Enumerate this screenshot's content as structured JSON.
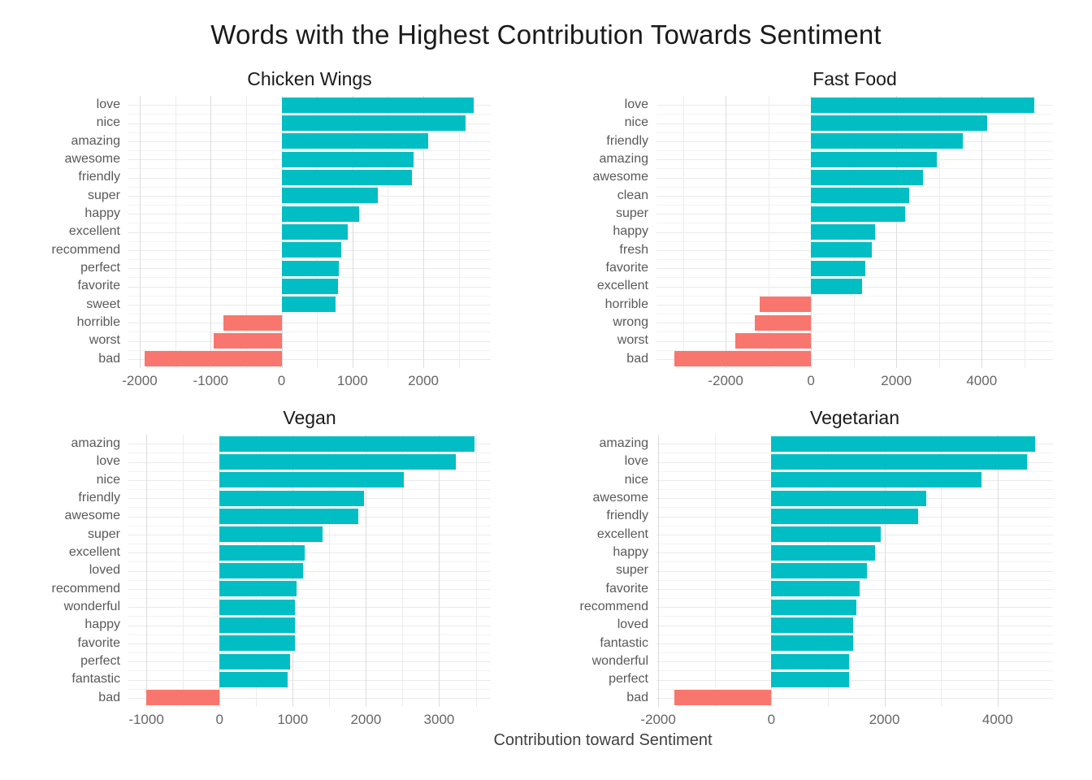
{
  "title": "Words with the Highest Contribution Towards Sentiment",
  "xlabel": "Contribution toward Sentiment",
  "colors": {
    "positive_bar": "#00BEC4",
    "negative_bar": "#F8766D",
    "grid_major": "#dcdcdc",
    "grid_minor": "#ececec",
    "axis_text": "#666666",
    "label_text": "#595959",
    "title_text": "#1a1a1a"
  },
  "chart_data": [
    {
      "type": "bar",
      "orientation": "horizontal",
      "title": "Chicken Wings",
      "categories": [
        "love",
        "nice",
        "amazing",
        "awesome",
        "friendly",
        "super",
        "happy",
        "excellent",
        "recommend",
        "perfect",
        "favorite",
        "sweet",
        "horrible",
        "worst",
        "bad"
      ],
      "values": [
        2710,
        2590,
        2070,
        1860,
        1840,
        1360,
        1090,
        930,
        840,
        810,
        800,
        760,
        -820,
        -960,
        -1930
      ],
      "xticks": [
        -2000,
        -1000,
        0,
        1000,
        2000
      ],
      "xticks_minor": [
        -1500,
        -500,
        500,
        1500,
        2500
      ],
      "xlim": [
        -2160,
        2950
      ],
      "grid": true,
      "legend": "none"
    },
    {
      "type": "bar",
      "orientation": "horizontal",
      "title": "Fast Food",
      "categories": [
        "love",
        "nice",
        "friendly",
        "amazing",
        "awesome",
        "clean",
        "super",
        "happy",
        "fresh",
        "favorite",
        "excellent",
        "horrible",
        "wrong",
        "worst",
        "bad"
      ],
      "values": [
        5240,
        4120,
        3560,
        2940,
        2620,
        2300,
        2210,
        1500,
        1420,
        1270,
        1200,
        -1200,
        -1320,
        -1780,
        -3200
      ],
      "xticks": [
        -2000,
        0,
        2000,
        4000
      ],
      "xticks_minor": [
        -3000,
        -1000,
        1000,
        3000,
        5000
      ],
      "xlim": [
        -3620,
        5670
      ],
      "grid": true,
      "legend": "none"
    },
    {
      "type": "bar",
      "orientation": "horizontal",
      "title": "Vegan",
      "categories": [
        "amazing",
        "love",
        "nice",
        "friendly",
        "awesome",
        "super",
        "excellent",
        "loved",
        "recommend",
        "wonderful",
        "happy",
        "favorite",
        "perfect",
        "fantastic",
        "bad"
      ],
      "values": [
        3480,
        3230,
        2520,
        1970,
        1900,
        1410,
        1160,
        1140,
        1050,
        1035,
        1030,
        1025,
        960,
        930,
        -1000
      ],
      "xticks": [
        -1000,
        0,
        1000,
        2000,
        3000
      ],
      "xticks_minor": [
        -500,
        500,
        1500,
        2500,
        3500
      ],
      "xlim": [
        -1245,
        3705
      ],
      "grid": true,
      "legend": "none"
    },
    {
      "type": "bar",
      "orientation": "horizontal",
      "title": "Vegetarian",
      "categories": [
        "amazing",
        "love",
        "nice",
        "awesome",
        "friendly",
        "excellent",
        "happy",
        "super",
        "favorite",
        "recommend",
        "loved",
        "fantastic",
        "wonderful",
        "perfect",
        "bad"
      ],
      "values": [
        4660,
        4520,
        3720,
        2740,
        2600,
        1930,
        1840,
        1690,
        1560,
        1510,
        1450,
        1440,
        1380,
        1370,
        -1710
      ],
      "xticks": [
        -2000,
        0,
        2000,
        4000
      ],
      "xticks_minor": [
        -1000,
        1000,
        3000
      ],
      "xlim": [
        -2030,
        4980
      ],
      "grid": true,
      "legend": "none"
    }
  ]
}
